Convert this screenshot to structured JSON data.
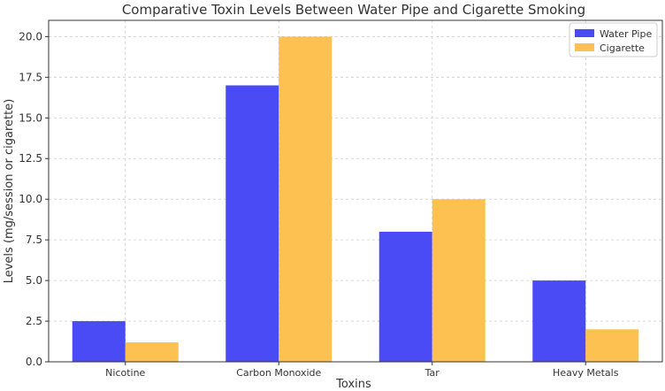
{
  "chart_data": {
    "type": "bar",
    "title": "Comparative Toxin Levels Between Water Pipe and Cigarette Smoking",
    "xlabel": "Toxins",
    "ylabel": "Levels (mg/session or cigarette)",
    "categories": [
      "Nicotine",
      "Carbon Monoxide",
      "Tar",
      "Heavy Metals"
    ],
    "series": [
      {
        "name": "Water Pipe",
        "values": [
          2.5,
          17.0,
          8.0,
          5.0
        ],
        "color": "#4b4bf5"
      },
      {
        "name": "Cigarette",
        "values": [
          1.2,
          20.0,
          10.0,
          2.0
        ],
        "color": "#fdc152"
      }
    ],
    "ylim": [
      0,
      21.0
    ],
    "yticks": [
      0.0,
      2.5,
      5.0,
      7.5,
      10.0,
      12.5,
      15.0,
      17.5,
      20.0
    ],
    "ytick_labels": [
      "0.0",
      "2.5",
      "5.0",
      "7.5",
      "10.0",
      "12.5",
      "15.0",
      "17.5",
      "20.0"
    ],
    "grid": true,
    "legend_position": "top-right"
  }
}
